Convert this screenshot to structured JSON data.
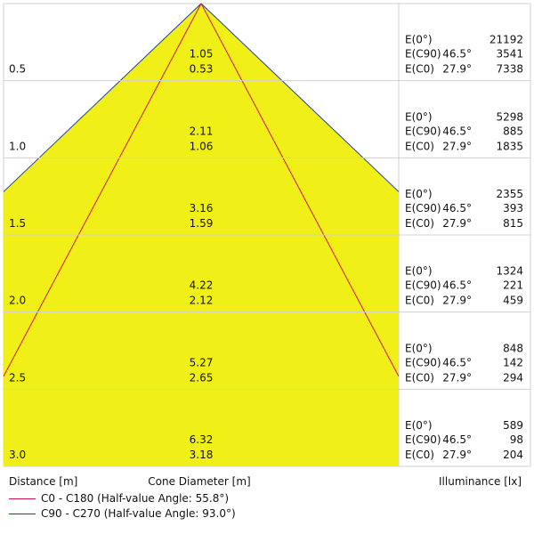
{
  "chart_data": {
    "type": "cone-diagram",
    "distance_label": "Distance [m]",
    "cone_label": "Cone Diameter [m]",
    "illuminance_label": "Illuminance [lx]",
    "legend": [
      {
        "label": "C0 - C180 (Half-value Angle: 55.8°)",
        "color": "#d4143c"
      },
      {
        "label": "C90 - C270 (Half-value Angle: 93.0°)",
        "color": "#1f3fa8"
      }
    ],
    "rows": [
      {
        "distance": "0.5",
        "diam_c90": "1.05",
        "diam_c0": "0.53",
        "e0_label": "E(0°)",
        "e0": "21192",
        "ec90_label": "E(C90)",
        "ec90_angle": "46.5°",
        "ec90": "3541",
        "ec0_label": "E(C0)",
        "ec0_angle": "27.9°",
        "ec0": "7338"
      },
      {
        "distance": "1.0",
        "diam_c90": "2.11",
        "diam_c0": "1.06",
        "e0_label": "E(0°)",
        "e0": "5298",
        "ec90_label": "E(C90)",
        "ec90_angle": "46.5°",
        "ec90": "885",
        "ec0_label": "E(C0)",
        "ec0_angle": "27.9°",
        "ec0": "1835"
      },
      {
        "distance": "1.5",
        "diam_c90": "3.16",
        "diam_c0": "1.59",
        "e0_label": "E(0°)",
        "e0": "2355",
        "ec90_label": "E(C90)",
        "ec90_angle": "46.5°",
        "ec90": "393",
        "ec0_label": "E(C0)",
        "ec0_angle": "27.9°",
        "ec0": "815"
      },
      {
        "distance": "2.0",
        "diam_c90": "4.22",
        "diam_c0": "2.12",
        "e0_label": "E(0°)",
        "e0": "1324",
        "ec90_label": "E(C90)",
        "ec90_angle": "46.5°",
        "ec90": "221",
        "ec0_label": "E(C0)",
        "ec0_angle": "27.9°",
        "ec0": "459"
      },
      {
        "distance": "2.5",
        "diam_c90": "5.27",
        "diam_c0": "2.65",
        "e0_label": "E(0°)",
        "e0": "848",
        "ec90_label": "E(C90)",
        "ec90_angle": "46.5°",
        "ec90": "142",
        "ec0_label": "E(C0)",
        "ec0_angle": "27.9°",
        "ec0": "294"
      },
      {
        "distance": "3.0",
        "diam_c90": "6.32",
        "diam_c0": "3.18",
        "e0_label": "E(0°)",
        "e0": "589",
        "ec90_label": "E(C90)",
        "ec90_angle": "46.5°",
        "ec90": "98",
        "ec0_label": "E(C0)",
        "ec0_angle": "27.9°",
        "ec0": "204"
      }
    ],
    "colors": {
      "cone_fill": "#f0f018",
      "grid": "#d0d0d0",
      "c90_edge": "#1f3fa8",
      "c0_line": "#d4143c"
    }
  }
}
